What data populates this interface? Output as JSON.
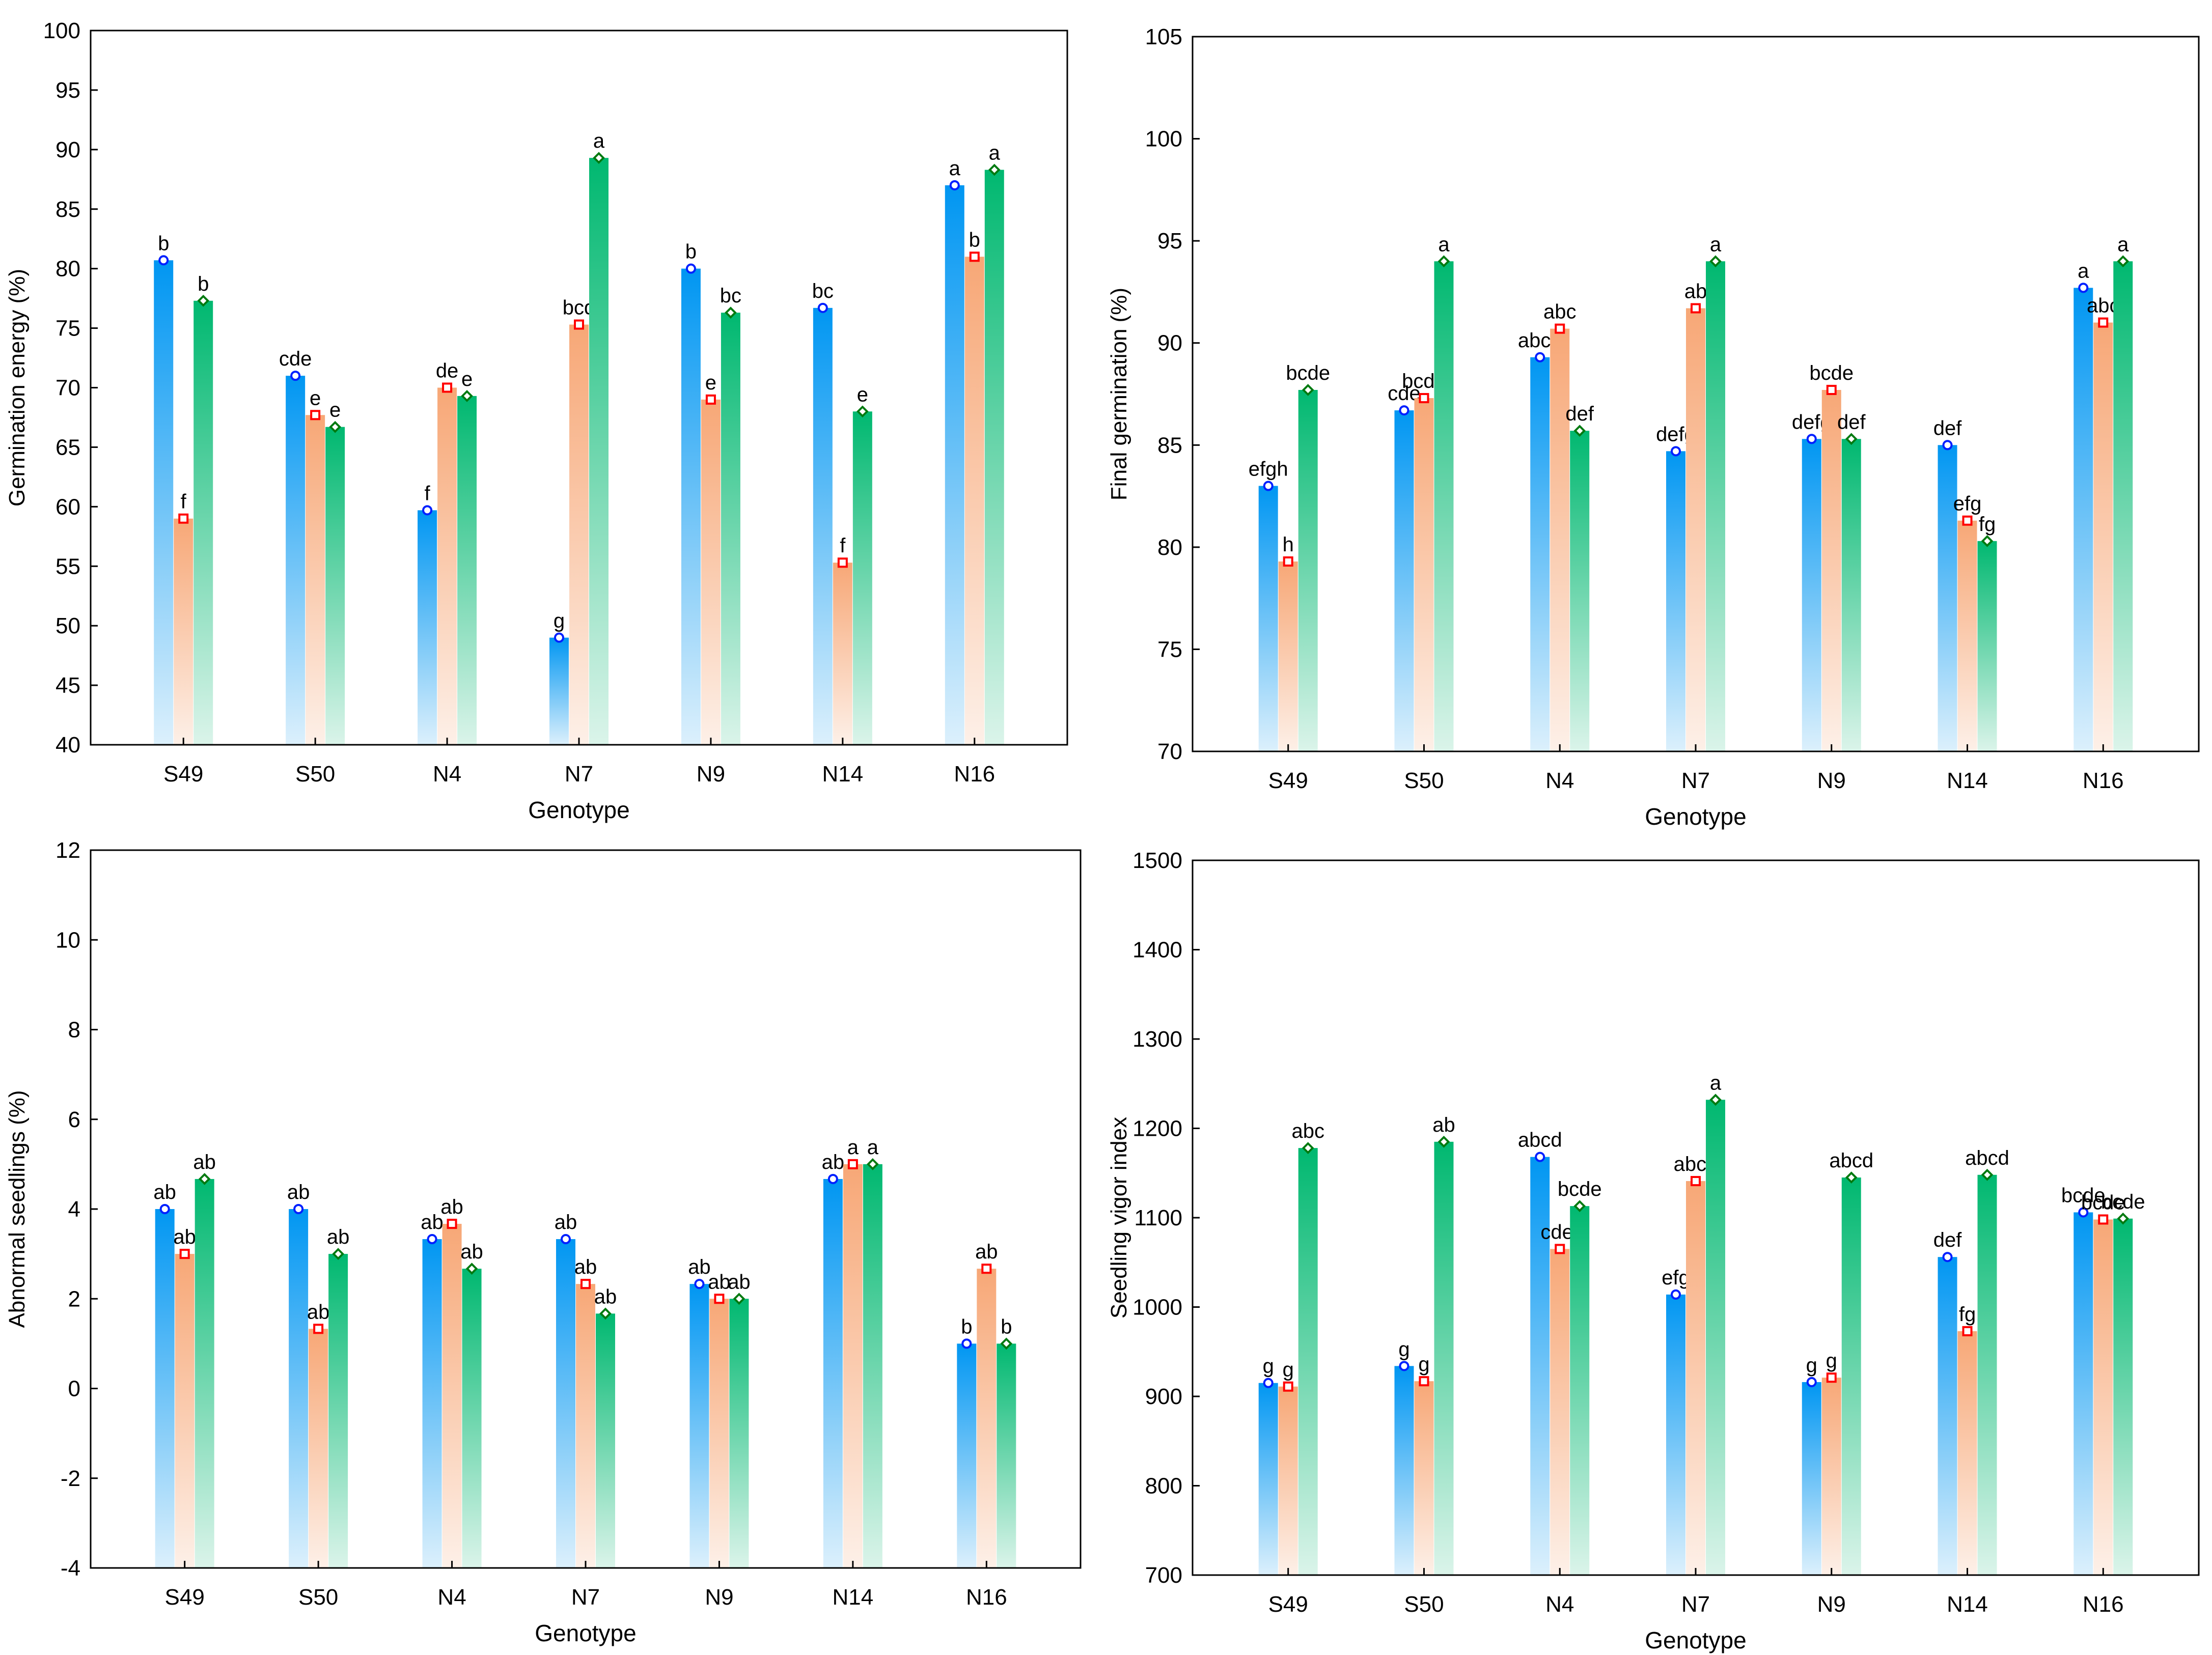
{
  "colors": {
    "series1_top": "#0096f2",
    "series1_bottom": "#dcf0fc",
    "series2_top": "#f7a776",
    "series2_bottom": "#fdf0e8",
    "series3_top": "#00b870",
    "series3_bottom": "#dbf4ea",
    "marker1": "#0020ff",
    "marker2": "#ff0000",
    "marker3": "#007a10"
  },
  "chart_data": [
    {
      "type": "bar",
      "panel": "top-left",
      "xlabel": "Genotype",
      "ylabel": "Germination energy (%)",
      "ylim": [
        40,
        100
      ],
      "yticks": [
        40,
        45,
        50,
        55,
        60,
        65,
        70,
        75,
        80,
        85,
        90,
        95,
        100
      ],
      "categories": [
        "S49",
        "S50",
        "N4",
        "N7",
        "N9",
        "N14",
        "N16"
      ],
      "series": [
        {
          "values": [
            80.7,
            71.0,
            59.7,
            49.0,
            80.0,
            76.7,
            87.0
          ],
          "labels": [
            "b",
            "cde",
            "f",
            "g",
            "b",
            "bc",
            "a"
          ]
        },
        {
          "values": [
            59.0,
            67.7,
            70.0,
            75.3,
            69.0,
            55.3,
            81.0
          ],
          "labels": [
            "f",
            "e",
            "de",
            "bcd",
            "e",
            "f",
            "b"
          ]
        },
        {
          "values": [
            77.3,
            66.7,
            69.3,
            89.3,
            76.3,
            68.0,
            88.3
          ],
          "labels": [
            "b",
            "e",
            "e",
            "a",
            "bc",
            "e",
            "a"
          ]
        }
      ]
    },
    {
      "type": "bar",
      "panel": "top-right",
      "xlabel": "Genotype",
      "ylabel": "Final germination (%)",
      "ylim": [
        70,
        105
      ],
      "yticks": [
        70,
        75,
        80,
        85,
        90,
        95,
        100,
        105
      ],
      "categories": [
        "S49",
        "S50",
        "N4",
        "N7",
        "N9",
        "N14",
        "N16"
      ],
      "series": [
        {
          "values": [
            83.0,
            86.7,
            89.3,
            84.7,
            85.3,
            85.0,
            92.7
          ],
          "labels": [
            "efgh",
            "cde",
            "abcd",
            "defg",
            "defg",
            "def",
            "a"
          ]
        },
        {
          "values": [
            79.3,
            87.3,
            90.7,
            91.7,
            87.7,
            81.3,
            91.0
          ],
          "labels": [
            "h",
            "bcde",
            "abc",
            "ab",
            "bcde",
            "efg",
            "abc"
          ]
        },
        {
          "values": [
            87.7,
            94.0,
            85.7,
            94.0,
            85.3,
            80.3,
            94.0
          ],
          "labels": [
            "bcde",
            "a",
            "def",
            "a",
            "def",
            "fg",
            "a"
          ]
        }
      ]
    },
    {
      "type": "bar",
      "panel": "bottom-left",
      "xlabel": "Genotype",
      "ylabel": "Abnormal seedlings (%)",
      "ylim": [
        -4,
        12
      ],
      "yticks": [
        -4,
        -2,
        0,
        2,
        4,
        6,
        8,
        10,
        12
      ],
      "categories": [
        "S49",
        "S50",
        "N4",
        "N7",
        "N9",
        "N14",
        "N16"
      ],
      "series": [
        {
          "values": [
            4.0,
            4.0,
            3.33,
            3.33,
            2.33,
            4.67,
            1.0
          ],
          "labels": [
            "ab",
            "ab",
            "ab",
            "ab",
            "ab",
            "ab",
            "b"
          ]
        },
        {
          "values": [
            3.0,
            1.33,
            3.67,
            2.33,
            2.0,
            5.0,
            2.67
          ],
          "labels": [
            "ab",
            "ab",
            "ab",
            "ab",
            "ab",
            "a",
            "ab"
          ]
        },
        {
          "values": [
            4.67,
            3.0,
            2.67,
            1.67,
            2.0,
            5.0,
            1.0
          ],
          "labels": [
            "ab",
            "ab",
            "ab",
            "ab",
            "ab",
            "a",
            "b"
          ]
        }
      ]
    },
    {
      "type": "bar",
      "panel": "bottom-right",
      "xlabel": "Genotype",
      "ylabel": "Seedling vigor index",
      "ylim": [
        700,
        1500
      ],
      "yticks": [
        700,
        800,
        900,
        1000,
        1100,
        1200,
        1300,
        1400,
        1500
      ],
      "categories": [
        "S49",
        "S50",
        "N4",
        "N7",
        "N9",
        "N14",
        "N16"
      ],
      "series": [
        {
          "values": [
            915,
            934,
            1168,
            1014,
            916,
            1056,
            1106
          ],
          "labels": [
            "g",
            "g",
            "abcd",
            "efg",
            "g",
            "def",
            "bcde"
          ]
        },
        {
          "values": [
            911,
            917,
            1065,
            1141,
            921,
            973,
            1098
          ],
          "labels": [
            "g",
            "g",
            "cdef",
            "abcd",
            "g",
            "fg",
            "bcde"
          ]
        },
        {
          "values": [
            1178,
            1185,
            1113,
            1232,
            1145,
            1148,
            1099
          ],
          "labels": [
            "abc",
            "ab",
            "bcde",
            "a",
            "abcd",
            "abcd",
            "bcde"
          ]
        }
      ]
    }
  ]
}
